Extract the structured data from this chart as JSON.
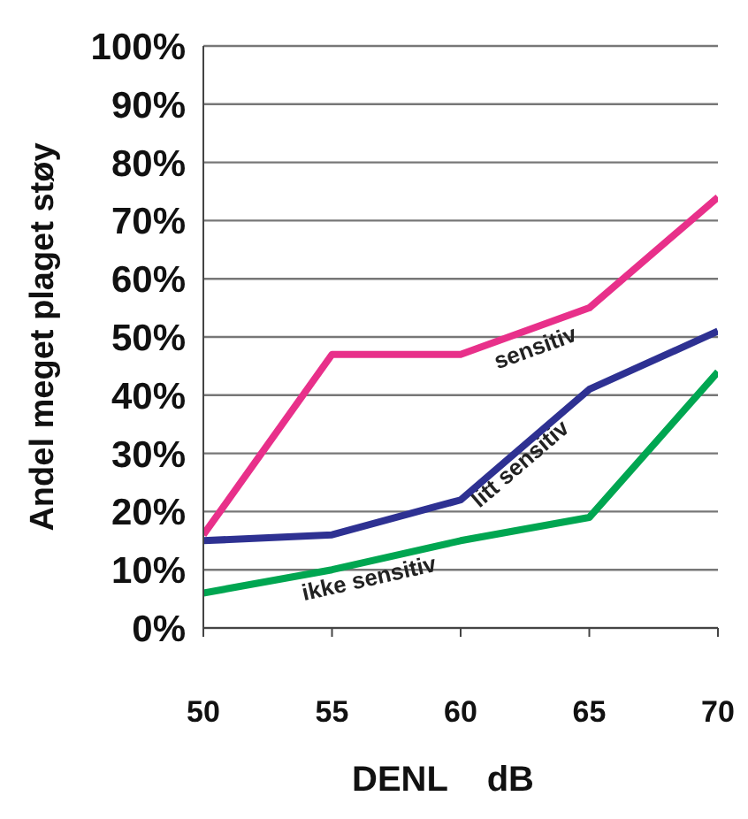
{
  "chart_data": {
    "type": "line",
    "xlabel": "DENL    dB",
    "ylabel": "Andel meget plaget støy",
    "x": [
      50,
      55,
      60,
      65,
      70
    ],
    "series": [
      {
        "name": "sensitiv",
        "color": "#e8308a",
        "values": [
          16,
          47,
          47,
          55,
          74
        ]
      },
      {
        "name": "litt sensitiv",
        "color": "#2e3192",
        "values": [
          15,
          16,
          22,
          41,
          51
        ]
      },
      {
        "name": "ikke sensitiv",
        "color": "#00a651",
        "values": [
          6,
          10,
          15,
          19,
          44
        ]
      }
    ],
    "xlim": [
      50,
      70
    ],
    "xticks": [
      50,
      55,
      60,
      65,
      70
    ],
    "ylim": [
      0,
      100
    ],
    "yticks": [
      {
        "value": 0,
        "label": "0%"
      },
      {
        "value": 10,
        "label": "10%"
      },
      {
        "value": 20,
        "label": "20%"
      },
      {
        "value": 30,
        "label": "30%"
      },
      {
        "value": 40,
        "label": "40%"
      },
      {
        "value": 50,
        "label": "50%"
      },
      {
        "value": 60,
        "label": "60%"
      },
      {
        "value": 70,
        "label": "70%"
      },
      {
        "value": 80,
        "label": "80%"
      },
      {
        "value": 90,
        "label": "90%"
      },
      {
        "value": 100,
        "label": "100%"
      }
    ],
    "grid": "y",
    "marker": "none",
    "line_style": "solid",
    "legend": false
  }
}
